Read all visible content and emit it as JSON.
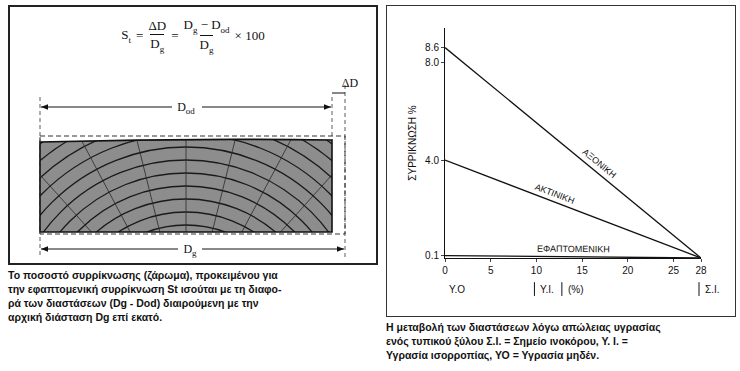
{
  "diagram": {
    "formula": {
      "left": {
        "base": "S",
        "sub": "t"
      },
      "equals": "=",
      "fraction1": {
        "num": [
          {
            "base": "ΔD"
          }
        ],
        "den": [
          {
            "base": "D",
            "sub": "g"
          }
        ]
      },
      "fraction2": {
        "num": [
          {
            "base": "D",
            "sub": "g"
          },
          {
            "base": " − "
          },
          {
            "base": "D",
            "sub": "od"
          }
        ],
        "den": [
          {
            "base": "D",
            "sub": "g"
          }
        ]
      },
      "factor": "× 100"
    },
    "dimensions": {
      "top": {
        "base": "D",
        "sub": "od"
      },
      "delta": {
        "base": "ΔD"
      },
      "bottom": {
        "base": "D",
        "sub": "g"
      }
    },
    "caption": [
      "Το ποσοστό συρρίκνωσης (ζάρωμα), προκειμένου για",
      "την εφαπτομενική συρρίκνωση St ισούται με τη διαφο-",
      "ρά των διαστάσεων (Dg - Dod) διαιρούμενη με την",
      "αρχική διάσταση Dg επί εκατό."
    ]
  },
  "chart_data": {
    "type": "line",
    "y_label": "ΣΥΡΡΙΚΝΩΣΗ %",
    "x": [
      0,
      28
    ],
    "series": [
      {
        "name": "ΑΞΟΝΙΚΗ",
        "color": "#111111",
        "line_style": "solid",
        "values": [
          8.6,
          0
        ]
      },
      {
        "name": "ΑΚΤΙΝΙΚΗ",
        "color": "#111111",
        "line_style": "solid",
        "values": [
          4.0,
          0
        ]
      },
      {
        "name": "ΕΦΑΠΤΟΜΕΝΙΚΗ",
        "color": "#111111",
        "line_style": "solid",
        "values": [
          0.1,
          0
        ]
      }
    ],
    "xlim": [
      0,
      28
    ],
    "xticks": [
      0,
      5,
      10,
      15,
      20,
      25,
      28
    ],
    "ylim": [
      0,
      9.4
    ],
    "yticks": [
      0.1,
      {
        "value": 4,
        "label": "4.0"
      },
      {
        "value": 8,
        "label": "8.0"
      },
      8.6
    ],
    "grid": false,
    "x_annotations": [
      {
        "text": "Υ.Ο",
        "x": 0
      },
      {
        "text": "Υ.Ι.",
        "x": 10
      },
      {
        "text": "(%)",
        "x": 13
      },
      {
        "text": "Σ.Ι.",
        "x": 28
      }
    ],
    "caption": [
      "Η μεταβολή των διαστάσεων λόγω απώλειας υγρασίας",
      "ενός τυπικού ξύλου Σ.Ι. = Σημείο ινοκόρου, Υ. Ι. =",
      "Υγρασία ισορροπίας, ΥΟ = Υγρασία μηδέν."
    ]
  }
}
